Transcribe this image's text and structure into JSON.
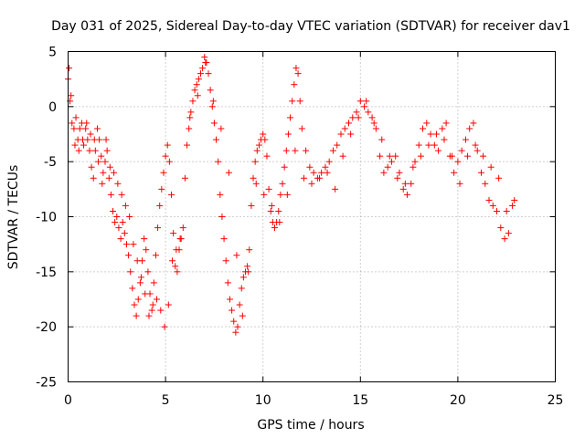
{
  "chart_data": {
    "type": "scatter",
    "title": "Day 031 of 2025, Sidereal Day-to-day VTEC variation (SDTVAR) for receiver dav1",
    "xlabel": "GPS time / hours",
    "ylabel": "SDTVAR / TECUs",
    "xlim": [
      0,
      25
    ],
    "ylim": [
      -25,
      5
    ],
    "xticks": [
      "0",
      "5",
      "10",
      "15",
      "20",
      "25"
    ],
    "yticks": [
      "5",
      "0",
      "-5",
      "-10",
      "-15",
      "-20",
      "-25"
    ],
    "grid": true,
    "marker": "plus",
    "series": [
      {
        "name": "dav1",
        "color": "#ff0000",
        "x": [
          0.0,
          0.1,
          0.2,
          0.3,
          0.4,
          0.5,
          0.6,
          0.7,
          0.8,
          0.9,
          1.0,
          1.1,
          1.2,
          1.3,
          1.4,
          1.5,
          1.6,
          1.7,
          1.8,
          1.9,
          2.0,
          2.1,
          2.2,
          2.3,
          2.4,
          2.5,
          2.6,
          2.7,
          2.8,
          2.9,
          3.0,
          3.1,
          3.2,
          3.3,
          3.4,
          3.5,
          3.6,
          3.7,
          3.8,
          3.9,
          4.0,
          4.1,
          4.2,
          4.3,
          4.4,
          4.5,
          4.6,
          4.7,
          4.8,
          4.9,
          5.0,
          5.1,
          5.2,
          5.3,
          5.4,
          5.5,
          5.6,
          5.7,
          5.8,
          5.9,
          6.0,
          6.1,
          6.2,
          6.3,
          6.4,
          6.5,
          6.6,
          6.7,
          6.8,
          6.9,
          7.0,
          7.1,
          7.2,
          7.3,
          7.4,
          7.5,
          7.6,
          7.7,
          7.8,
          7.9,
          8.0,
          8.1,
          8.2,
          8.3,
          8.4,
          8.5,
          8.6,
          8.7,
          8.8,
          8.9,
          9.0,
          9.1,
          9.2,
          9.3,
          9.4,
          9.5,
          9.6,
          9.7,
          9.8,
          9.9,
          10.0,
          10.1,
          10.2,
          10.3,
          10.4,
          10.5,
          10.6,
          10.7,
          10.8,
          10.9,
          11.0,
          11.1,
          11.2,
          11.3,
          11.4,
          11.5,
          11.6,
          11.7,
          11.8,
          11.9,
          12.0,
          12.2,
          12.4,
          12.6,
          12.8,
          13.0,
          13.2,
          13.4,
          13.6,
          13.8,
          14.0,
          14.2,
          14.4,
          14.6,
          14.8,
          15.0,
          15.2,
          15.4,
          15.6,
          15.8,
          16.0,
          16.2,
          16.4,
          16.6,
          16.8,
          17.0,
          17.2,
          17.4,
          17.6,
          17.8,
          18.0,
          18.2,
          18.4,
          18.6,
          18.8,
          19.0,
          19.2,
          19.4,
          19.6,
          19.8,
          20.0,
          20.2,
          20.4,
          20.6,
          20.8,
          21.0,
          21.2,
          21.4,
          21.6,
          21.8,
          22.0,
          22.2,
          22.4,
          22.6,
          22.8,
          0.05,
          0.15,
          0.35,
          0.55,
          0.75,
          0.95,
          1.15,
          1.35,
          1.55,
          1.75,
          1.95,
          2.15,
          2.35,
          2.55,
          2.75,
          2.95,
          3.15,
          3.35,
          3.55,
          3.75,
          3.95,
          4.15,
          4.35,
          4.55,
          4.75,
          4.95,
          5.15,
          5.35,
          5.55,
          5.75,
          6.25,
          6.65,
          7.05,
          7.45,
          7.85,
          8.25,
          8.65,
          8.95,
          9.25,
          9.65,
          10.05,
          10.45,
          10.85,
          11.25,
          11.65,
          12.1,
          12.5,
          12.9,
          13.3,
          13.7,
          14.1,
          14.5,
          14.9,
          15.3,
          15.7,
          16.1,
          16.5,
          16.9,
          17.3,
          17.7,
          18.1,
          18.5,
          18.9,
          19.3,
          19.7,
          20.1,
          20.5,
          20.9,
          21.3,
          21.7,
          22.1,
          22.5,
          22.9
        ],
        "y": [
          2.5,
          0.5,
          -1.5,
          -2.0,
          -1.0,
          -3.0,
          -2.0,
          -1.5,
          -3.5,
          -2.0,
          -3.0,
          -4.0,
          -5.5,
          -6.5,
          -4.0,
          -2.0,
          -3.0,
          -4.5,
          -6.0,
          -5.0,
          -4.0,
          -6.5,
          -8.0,
          -9.5,
          -10.5,
          -10.0,
          -11.0,
          -12.0,
          -10.5,
          -11.5,
          -12.5,
          -13.5,
          -15.0,
          -16.5,
          -18.0,
          -19.0,
          -17.5,
          -16.0,
          -14.0,
          -12.0,
          -13.0,
          -15.0,
          -17.0,
          -18.5,
          -16.0,
          -13.5,
          -11.0,
          -9.0,
          -7.5,
          -6.0,
          -4.5,
          -3.5,
          -5.0,
          -8.0,
          -11.5,
          -14.5,
          -15.0,
          -13.0,
          -12.0,
          -11.0,
          -6.5,
          -3.5,
          -2.0,
          -0.5,
          0.5,
          1.5,
          2.0,
          2.5,
          3.0,
          3.5,
          4.5,
          4.0,
          3.0,
          1.5,
          0.0,
          -1.5,
          -3.0,
          -5.0,
          -8.0,
          -10.0,
          -12.0,
          -14.0,
          -16.0,
          -17.5,
          -18.5,
          -19.5,
          -20.5,
          -20.0,
          -18.0,
          -16.5,
          -15.5,
          -15.0,
          -14.5,
          -13.0,
          -9.0,
          -6.5,
          -5.0,
          -4.0,
          -3.5,
          -3.0,
          -2.5,
          -3.0,
          -4.5,
          -7.5,
          -9.5,
          -10.5,
          -11.0,
          -10.5,
          -9.5,
          -8.0,
          -7.0,
          -5.5,
          -4.0,
          -2.5,
          -1.0,
          0.5,
          2.0,
          3.5,
          3.0,
          0.5,
          -2.0,
          -4.0,
          -5.5,
          -6.0,
          -6.5,
          -6.0,
          -5.5,
          -5.0,
          -4.0,
          -3.5,
          -2.5,
          -2.0,
          -1.5,
          -1.0,
          -0.5,
          0.5,
          0.0,
          -0.5,
          -1.0,
          -2.0,
          -4.5,
          -6.0,
          -5.5,
          -5.0,
          -4.5,
          -6.0,
          -7.5,
          -8.0,
          -7.0,
          -5.0,
          -3.5,
          -2.0,
          -1.5,
          -2.5,
          -3.5,
          -4.0,
          -2.0,
          -1.5,
          -4.5,
          -6.0,
          -5.0,
          -4.0,
          -3.0,
          -2.0,
          -1.5,
          -4.0,
          -6.0,
          -7.0,
          -8.5,
          -9.0,
          -9.5,
          -11.0,
          -12.0,
          -11.5,
          -9.0,
          3.5,
          1.0,
          -3.5,
          -4.0,
          -3.0,
          -1.5,
          -2.5,
          -3.0,
          -5.0,
          -7.0,
          -3.0,
          -5.5,
          -6.0,
          -7.0,
          -8.0,
          -9.0,
          -10.0,
          -12.5,
          -14.0,
          -15.5,
          -17.0,
          -19.0,
          -18.0,
          -17.5,
          -18.5,
          -20.0,
          -18.0,
          -14.0,
          -13.0,
          -12.0,
          -1.0,
          1.0,
          4.0,
          0.5,
          -2.0,
          -6.0,
          -13.5,
          -19.0,
          -15.0,
          -7.0,
          -8.0,
          -9.0,
          -10.5,
          -8.0,
          -4.0,
          -6.5,
          -7.0,
          -6.5,
          -6.0,
          -7.5,
          -4.5,
          -2.5,
          -1.0,
          0.5,
          -1.5,
          -3.0,
          -4.5,
          -6.5,
          -7.0,
          -5.5,
          -4.5,
          -3.5,
          -2.5,
          -3.0,
          -4.5,
          -7.0,
          -4.5,
          -3.5,
          -4.5,
          -5.5,
          -6.5,
          -9.5,
          -8.5
        ]
      }
    ]
  }
}
